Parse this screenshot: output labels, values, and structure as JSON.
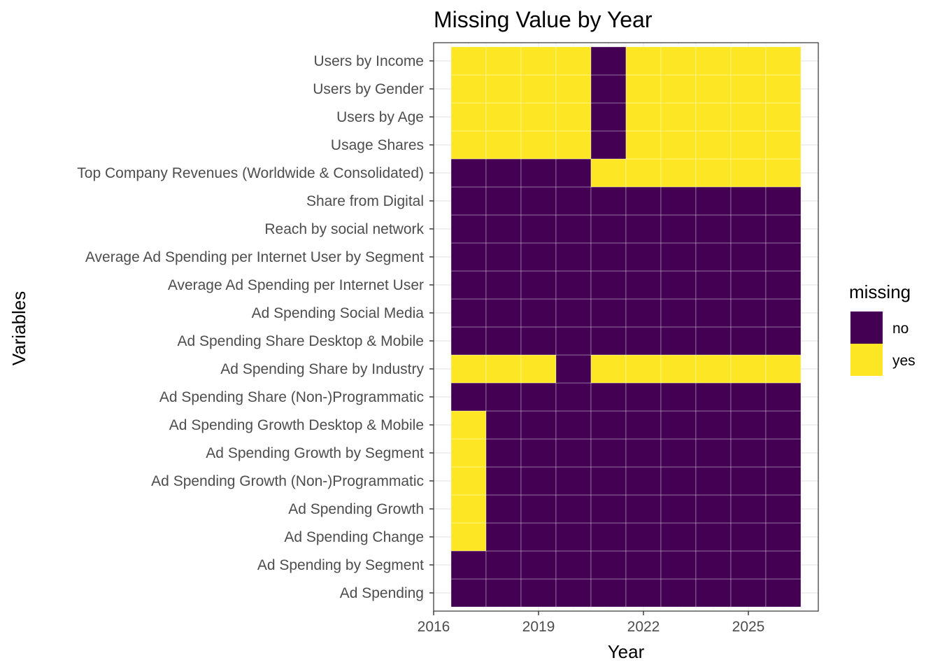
{
  "chart_data": {
    "type": "heatmap",
    "title": "Missing Value by Year",
    "xlabel": "Year",
    "ylabel": "Variables",
    "x": [
      2017,
      2018,
      2019,
      2020,
      2021,
      2022,
      2023,
      2024,
      2025,
      2026
    ],
    "xlim": [
      2016,
      2027
    ],
    "xticks": [
      2016,
      2019,
      2022,
      2025
    ],
    "xtick_labels": [
      "2016",
      "2019",
      "2022",
      "2025"
    ],
    "variables": [
      "Ad Spending",
      "Ad Spending by Segment",
      "Ad Spending Change",
      "Ad Spending Growth",
      "Ad Spending Growth (Non-)Programmatic",
      "Ad Spending Growth by Segment",
      "Ad Spending Growth Desktop & Mobile",
      "Ad Spending Share (Non-)Programmatic",
      "Ad Spending Share by Industry",
      "Ad Spending Share Desktop & Mobile",
      "Ad Spending Social Media",
      "Average Ad Spending per Internet User",
      "Average Ad Spending per Internet User by Segment",
      "Reach by social network",
      "Share from Digital",
      "Top Company Revenues (Worldwide & Consolidated)",
      "Usage Shares",
      "Users by Age",
      "Users by Gender",
      "Users by Income"
    ],
    "missing": [
      [
        "no",
        "no",
        "no",
        "no",
        "no",
        "no",
        "no",
        "no",
        "no",
        "no"
      ],
      [
        "no",
        "no",
        "no",
        "no",
        "no",
        "no",
        "no",
        "no",
        "no",
        "no"
      ],
      [
        "yes",
        "no",
        "no",
        "no",
        "no",
        "no",
        "no",
        "no",
        "no",
        "no"
      ],
      [
        "yes",
        "no",
        "no",
        "no",
        "no",
        "no",
        "no",
        "no",
        "no",
        "no"
      ],
      [
        "yes",
        "no",
        "no",
        "no",
        "no",
        "no",
        "no",
        "no",
        "no",
        "no"
      ],
      [
        "yes",
        "no",
        "no",
        "no",
        "no",
        "no",
        "no",
        "no",
        "no",
        "no"
      ],
      [
        "yes",
        "no",
        "no",
        "no",
        "no",
        "no",
        "no",
        "no",
        "no",
        "no"
      ],
      [
        "no",
        "no",
        "no",
        "no",
        "no",
        "no",
        "no",
        "no",
        "no",
        "no"
      ],
      [
        "yes",
        "yes",
        "yes",
        "no",
        "yes",
        "yes",
        "yes",
        "yes",
        "yes",
        "yes"
      ],
      [
        "no",
        "no",
        "no",
        "no",
        "no",
        "no",
        "no",
        "no",
        "no",
        "no"
      ],
      [
        "no",
        "no",
        "no",
        "no",
        "no",
        "no",
        "no",
        "no",
        "no",
        "no"
      ],
      [
        "no",
        "no",
        "no",
        "no",
        "no",
        "no",
        "no",
        "no",
        "no",
        "no"
      ],
      [
        "no",
        "no",
        "no",
        "no",
        "no",
        "no",
        "no",
        "no",
        "no",
        "no"
      ],
      [
        "no",
        "no",
        "no",
        "no",
        "no",
        "no",
        "no",
        "no",
        "no",
        "no"
      ],
      [
        "no",
        "no",
        "no",
        "no",
        "no",
        "no",
        "no",
        "no",
        "no",
        "no"
      ],
      [
        "no",
        "no",
        "no",
        "no",
        "yes",
        "yes",
        "yes",
        "yes",
        "yes",
        "yes"
      ],
      [
        "yes",
        "yes",
        "yes",
        "yes",
        "no",
        "yes",
        "yes",
        "yes",
        "yes",
        "yes"
      ],
      [
        "yes",
        "yes",
        "yes",
        "yes",
        "no",
        "yes",
        "yes",
        "yes",
        "yes",
        "yes"
      ],
      [
        "yes",
        "yes",
        "yes",
        "yes",
        "no",
        "yes",
        "yes",
        "yes",
        "yes",
        "yes"
      ],
      [
        "yes",
        "yes",
        "yes",
        "yes",
        "no",
        "yes",
        "yes",
        "yes",
        "yes",
        "yes"
      ]
    ],
    "legend": {
      "title": "missing",
      "placement": "right",
      "entries": [
        {
          "label": "no",
          "color": "#440154"
        },
        {
          "label": "yes",
          "color": "#FDE725"
        }
      ]
    },
    "colors": {
      "no": "#440154",
      "yes": "#FDE725"
    },
    "grid": true
  }
}
